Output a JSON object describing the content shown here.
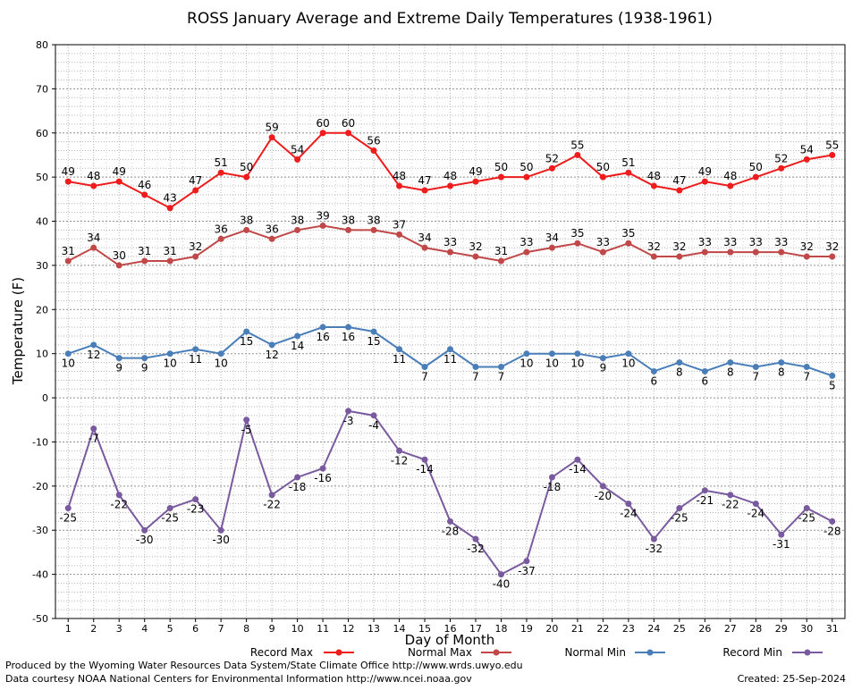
{
  "chart_data": {
    "type": "line",
    "title": "ROSS January Average and Extreme Daily Temperatures (1938-1961)",
    "xlabel": "Day of Month",
    "ylabel": "Temperature (F)",
    "ylim": [
      -50,
      80
    ],
    "yticks": [
      -50,
      -40,
      -30,
      -20,
      -10,
      0,
      10,
      20,
      30,
      40,
      50,
      60,
      70,
      80
    ],
    "grid": true,
    "legend_position": "bottom",
    "x": [
      1,
      2,
      3,
      4,
      5,
      6,
      7,
      8,
      9,
      10,
      11,
      12,
      13,
      14,
      15,
      16,
      17,
      18,
      19,
      20,
      21,
      22,
      23,
      24,
      25,
      26,
      27,
      28,
      29,
      30,
      31
    ],
    "series": [
      {
        "name": "Record Max",
        "color": "#ee1c1c",
        "label_pos": "above",
        "values": [
          49,
          48,
          49,
          46,
          43,
          47,
          51,
          50,
          59,
          54,
          60,
          60,
          56,
          48,
          47,
          48,
          49,
          50,
          50,
          52,
          55,
          50,
          51,
          48,
          47,
          49,
          48,
          50,
          52,
          54,
          55
        ]
      },
      {
        "name": "Normal Max",
        "color": "#c04848",
        "label_pos": "above",
        "values": [
          31,
          34,
          30,
          31,
          31,
          32,
          36,
          38,
          36,
          38,
          39,
          38,
          38,
          37,
          34,
          33,
          32,
          31,
          33,
          34,
          35,
          33,
          35,
          32,
          32,
          33,
          33,
          33,
          33,
          32,
          32
        ]
      },
      {
        "name": "Normal Min",
        "color": "#4a7eb8",
        "label_pos": "below",
        "values": [
          10,
          12,
          9,
          9,
          10,
          11,
          10,
          15,
          12,
          14,
          16,
          16,
          15,
          11,
          7,
          11,
          7,
          7,
          10,
          10,
          10,
          9,
          10,
          6,
          8,
          6,
          8,
          7,
          8,
          7,
          5
        ]
      },
      {
        "name": "Record Min",
        "color": "#7a5a9e",
        "label_pos": "below",
        "values": [
          -25,
          -7,
          -22,
          -30,
          -25,
          -23,
          -30,
          -5,
          -22,
          -18,
          -16,
          -3,
          -4,
          -12,
          -14,
          -28,
          -32,
          -40,
          -37,
          -18,
          -14,
          -20,
          -24,
          -32,
          -25,
          -21,
          -22,
          -24,
          -31,
          -25,
          -28
        ]
      }
    ]
  },
  "footer": {
    "line1": "Produced by the Wyoming Water Resources Data System/State Climate Office http://www.wrds.uwyo.edu",
    "line2": "Data courtesy NOAA National Centers for Environmental Information http://www.ncei.noaa.gov",
    "created": "Created: 25-Sep-2024"
  }
}
